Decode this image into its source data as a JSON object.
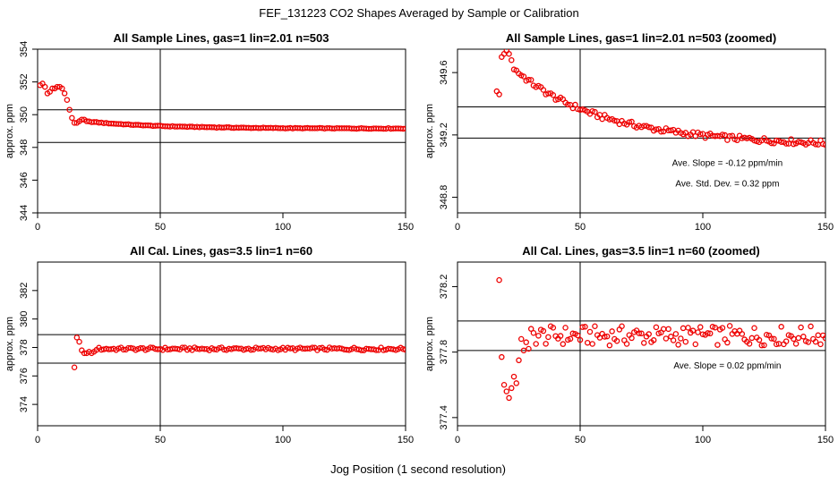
{
  "figure": {
    "title": "FEF_131223  CO2 Shapes Averaged by Sample or Calibration",
    "xlabel": "Jog Position (1 second resolution)"
  },
  "colors": {
    "points": "#ee0000",
    "lines": "#000000"
  },
  "chart_data": [
    {
      "type": "scatter",
      "title": "All Sample Lines, gas=1 lin=2.01 n=503",
      "ylabel": "approx. ppm",
      "xlim": [
        0,
        150
      ],
      "ylim": [
        344,
        354
      ],
      "xticks": [
        0,
        50,
        100,
        150
      ],
      "yticks": [
        344,
        346,
        348,
        350,
        352,
        354
      ],
      "vline": 50,
      "hlines": [
        350.3,
        348.3
      ],
      "grid": false,
      "series": [
        {
          "x": "1..150",
          "y_profile": "sample_full"
        }
      ],
      "annotations": []
    },
    {
      "type": "scatter",
      "title": "All Sample Lines, gas=1 lin=2.01 n=503 (zoomed)",
      "ylabel": "approx. ppm",
      "xlim": [
        0,
        150
      ],
      "ylim": [
        348.7,
        349.75
      ],
      "xticks": [
        0,
        50,
        100,
        150
      ],
      "yticks": [
        348.8,
        349.2,
        349.6
      ],
      "vline": 50,
      "hlines": [
        349.38,
        349.18
      ],
      "grid": false,
      "series": [
        {
          "x": "16..150",
          "y_profile": "sample_zoom"
        }
      ],
      "annotations": [
        {
          "text": "Ave. Slope =  -0.12  ppm/min",
          "x": 110,
          "y": 349.0
        },
        {
          "text": "Ave. Std. Dev. =  0.32  ppm",
          "x": 110,
          "y": 348.87
        }
      ]
    },
    {
      "type": "scatter",
      "title": "All Cal. Lines, gas=3.5 lin=1 n=60",
      "ylabel": "approx. ppm",
      "xlim": [
        0,
        150
      ],
      "ylim": [
        372.5,
        384
      ],
      "xticks": [
        0,
        50,
        100,
        150
      ],
      "yticks": [
        374,
        376,
        378,
        380,
        382
      ],
      "vline": 50,
      "hlines": [
        378.9,
        376.9
      ],
      "grid": false,
      "series": [
        {
          "x": "15..150",
          "y_profile": "cal_full"
        }
      ],
      "annotations": []
    },
    {
      "type": "scatter",
      "title": "All Cal. Lines, gas=3.5 lin=1 n=60 (zoomed)",
      "ylabel": "approx. ppm",
      "xlim": [
        0,
        150
      ],
      "ylim": [
        377.35,
        378.35
      ],
      "xticks": [
        0,
        50,
        100,
        150
      ],
      "yticks": [
        377.4,
        377.8,
        378.2
      ],
      "vline": 50,
      "hlines": [
        377.99,
        377.81
      ],
      "grid": false,
      "series": [
        {
          "x": "17..150",
          "y_profile": "cal_zoom"
        }
      ],
      "annotations": [
        {
          "text": "Ave. Slope =  0.02  ppm/min",
          "x": 110,
          "y": 377.7
        }
      ]
    }
  ]
}
